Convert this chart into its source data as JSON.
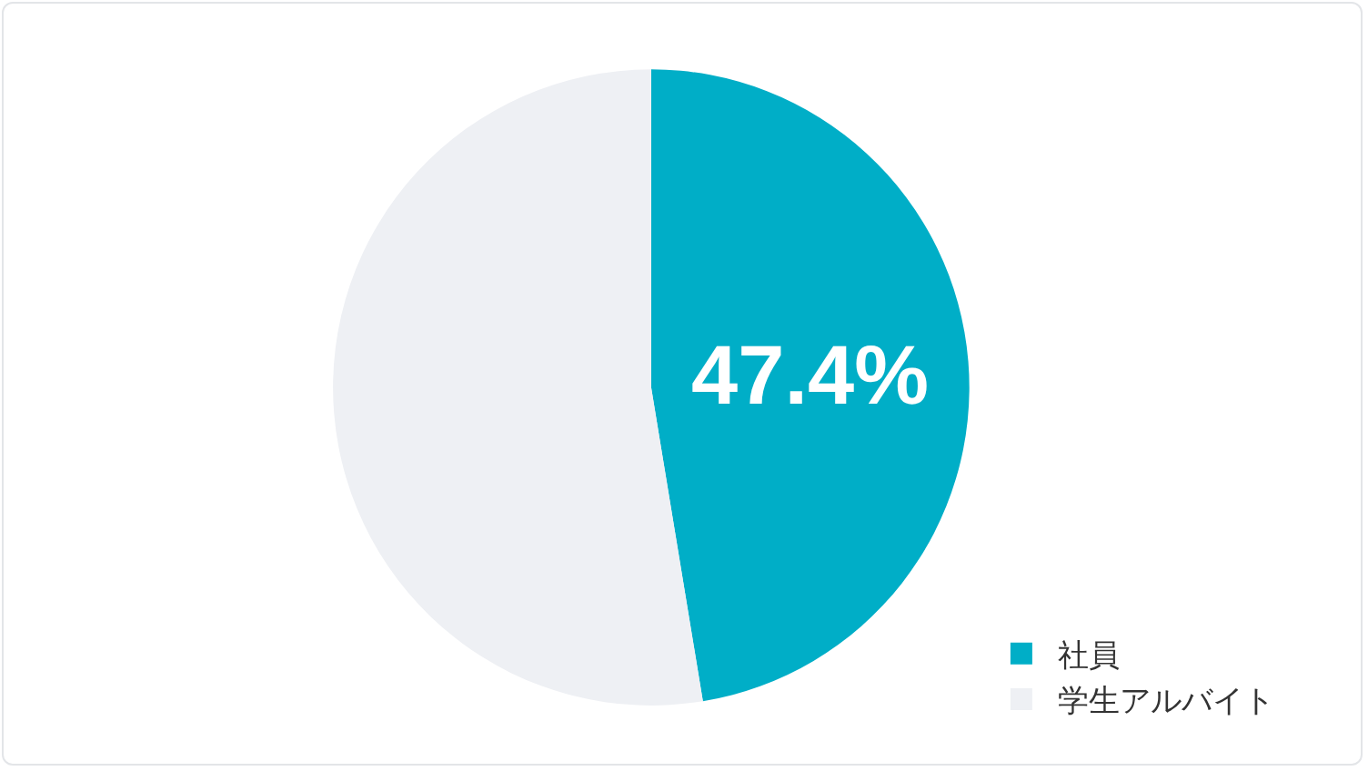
{
  "chart_data": {
    "type": "pie",
    "categories": [
      "社員",
      "学生アルバイト"
    ],
    "values": [
      47.4,
      52.6
    ],
    "colors": [
      "#00aec7",
      "#eef0f4"
    ],
    "value_labels": [
      "47.4%",
      null
    ],
    "legend": "bottom right"
  }
}
